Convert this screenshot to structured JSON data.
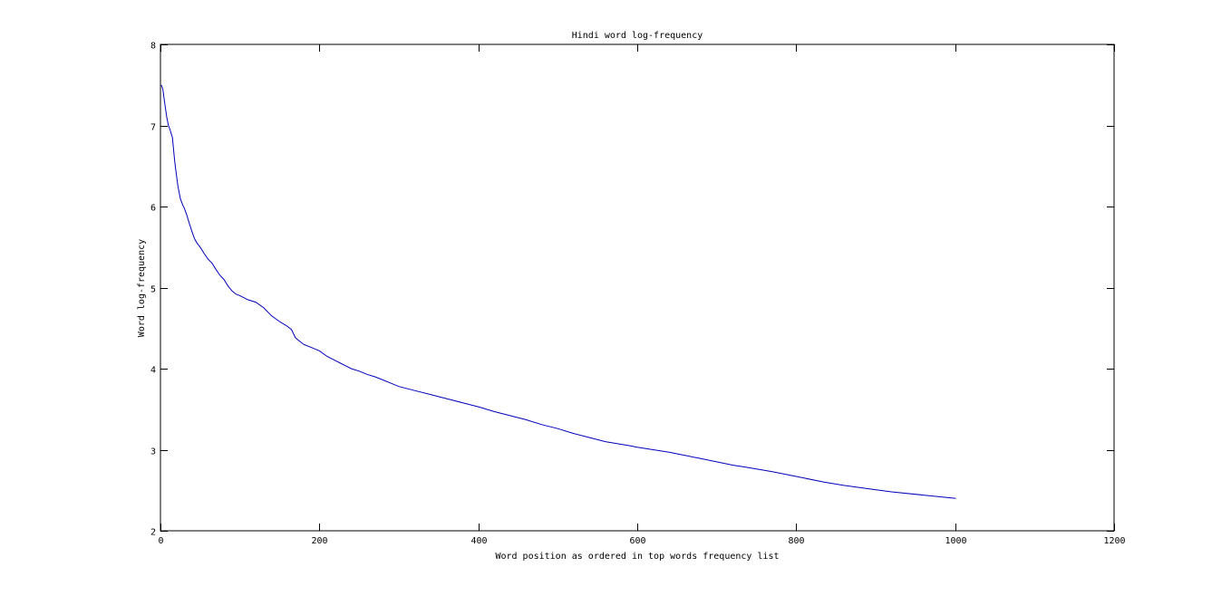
{
  "chart_data": {
    "type": "line",
    "title": "Hindi word log-frequency",
    "xlabel": "Word position as ordered in top words frequency list",
    "ylabel": "Word log-frequency",
    "xlim": [
      0,
      1200
    ],
    "ylim": [
      2,
      8
    ],
    "xticks": [
      0,
      200,
      400,
      600,
      800,
      1000,
      1200
    ],
    "yticks": [
      2,
      3,
      4,
      5,
      6,
      7,
      8
    ],
    "xtick_labels": [
      "0",
      "200",
      "400",
      "600",
      "800",
      "1000",
      "1200"
    ],
    "ytick_labels": [
      "2",
      "3",
      "4",
      "5",
      "6",
      "7",
      "8"
    ],
    "grid": false,
    "color": "#0000bb",
    "series": [
      {
        "x": [
          1,
          3,
          5,
          8,
          10,
          12,
          15,
          18,
          20,
          22,
          25,
          28,
          30,
          33,
          36,
          40,
          43,
          46,
          50,
          55,
          60,
          65,
          70,
          75,
          80,
          85,
          90,
          95,
          100,
          110,
          120,
          130,
          140,
          150,
          160,
          165,
          170,
          180,
          190,
          200,
          210,
          220,
          230,
          240,
          250,
          260,
          270,
          280,
          290,
          300,
          320,
          340,
          360,
          380,
          400,
          420,
          440,
          460,
          480,
          500,
          520,
          540,
          560,
          590,
          600,
          620,
          640,
          660,
          680,
          700,
          720,
          740,
          770,
          790,
          810,
          835,
          860,
          890,
          920,
          960,
          1001
        ],
        "y": [
          7.5,
          7.45,
          7.3,
          7.1,
          7.0,
          6.95,
          6.85,
          6.55,
          6.4,
          6.25,
          6.1,
          6.02,
          5.98,
          5.9,
          5.8,
          5.68,
          5.6,
          5.55,
          5.5,
          5.42,
          5.35,
          5.3,
          5.22,
          5.15,
          5.1,
          5.02,
          4.96,
          4.92,
          4.9,
          4.85,
          4.82,
          4.75,
          4.65,
          4.58,
          4.52,
          4.48,
          4.38,
          4.3,
          4.26,
          4.22,
          4.15,
          4.1,
          4.05,
          4.0,
          3.97,
          3.93,
          3.9,
          3.86,
          3.82,
          3.78,
          3.73,
          3.68,
          3.63,
          3.58,
          3.53,
          3.47,
          3.42,
          3.37,
          3.31,
          3.26,
          3.2,
          3.15,
          3.1,
          3.05,
          3.03,
          3.0,
          2.97,
          2.93,
          2.89,
          2.85,
          2.81,
          2.78,
          2.73,
          2.69,
          2.65,
          2.6,
          2.56,
          2.52,
          2.48,
          2.44,
          2.4
        ]
      }
    ]
  }
}
